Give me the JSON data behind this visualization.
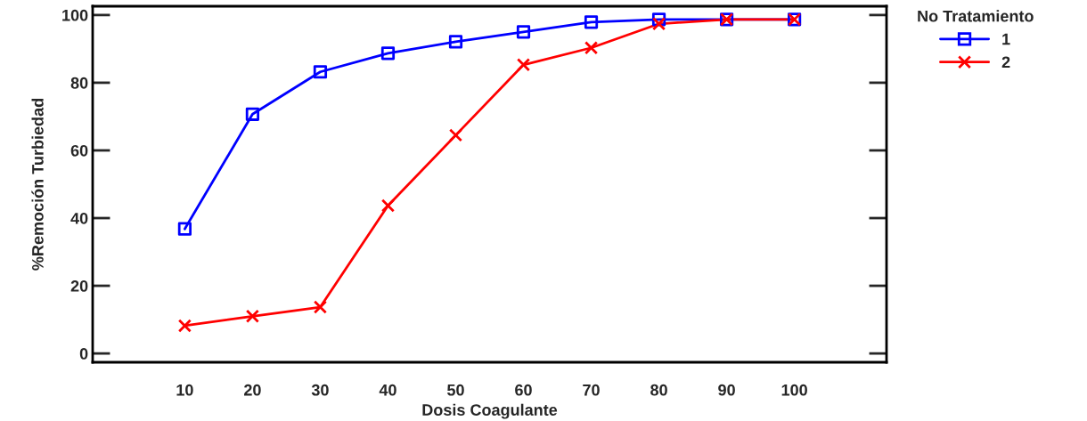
{
  "chart_data": {
    "type": "line",
    "xlabel": "Dosis Coagulante",
    "ylabel": "%Remoción Turbiedad",
    "legend_title": "No Tratamiento",
    "categories": [
      "10",
      "20",
      "30",
      "40",
      "50",
      "60",
      "70",
      "80",
      "90",
      "100"
    ],
    "series": [
      {
        "name": "1",
        "color": "#0000ff",
        "marker": "square",
        "values": [
          36.8,
          70.7,
          83.2,
          88.7,
          92.1,
          95.0,
          97.9,
          98.7,
          98.7,
          98.7
        ]
      },
      {
        "name": "2",
        "color": "#ff0000",
        "marker": "cross",
        "values": [
          8.2,
          11.0,
          13.7,
          43.7,
          64.5,
          85.3,
          90.3,
          97.4,
          98.7,
          98.7
        ]
      }
    ],
    "ylim": [
      -2.6,
      102.6
    ],
    "yticks": [
      0,
      20,
      40,
      60,
      80,
      100
    ],
    "grid": false,
    "legend": "top right",
    "line_style": "solid"
  }
}
